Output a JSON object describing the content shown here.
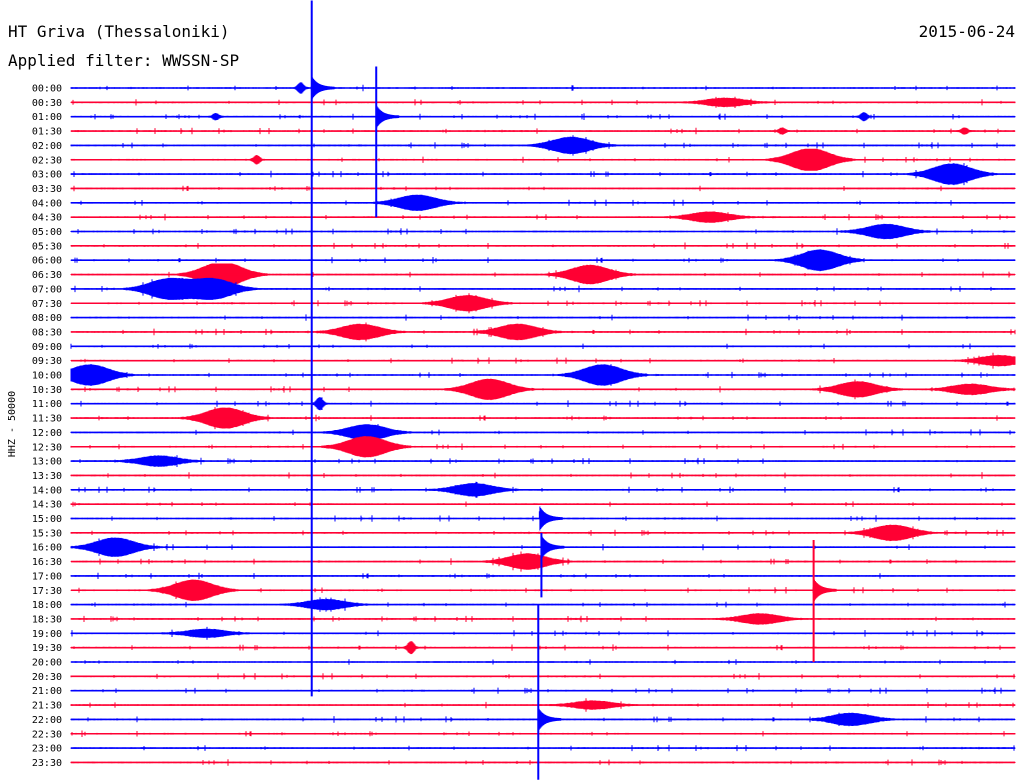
{
  "header": {
    "station": "HT Griva (Thessaloniki)",
    "date": "2015-06-24",
    "filter": "Applied filter: WWSSN-SP"
  },
  "chart_data": {
    "type": "line",
    "title": "HT Griva (Thessaloniki)",
    "subtitle": "Applied filter: WWSSN-SP",
    "ylabel": "HHZ - 50000",
    "xlabel": "",
    "grid": false,
    "colors": {
      "odd": "#0000ff",
      "even": "#ff0033"
    },
    "rows": [
      "00:00",
      "00:30",
      "01:00",
      "01:30",
      "02:00",
      "02:30",
      "03:00",
      "03:30",
      "04:00",
      "04:30",
      "05:00",
      "05:30",
      "06:00",
      "06:30",
      "07:00",
      "07:30",
      "08:00",
      "08:30",
      "09:00",
      "09:30",
      "10:00",
      "10:30",
      "11:00",
      "11:30",
      "12:00",
      "12:30",
      "13:00",
      "13:30",
      "14:00",
      "14:30",
      "15:00",
      "15:30",
      "16:00",
      "16:30",
      "17:00",
      "17:30",
      "18:00",
      "18:30",
      "19:00",
      "19:30",
      "20:00",
      "20:30",
      "21:00",
      "21:30",
      "22:00",
      "22:30",
      "23:00",
      "23:30"
    ],
    "events": [
      {
        "row": 0,
        "minute": 7.3,
        "amp": 1.0,
        "kind": "spike"
      },
      {
        "row": 1,
        "minute": 20.8,
        "amp": 0.8,
        "kind": "burst"
      },
      {
        "row": 2,
        "minute": 4.6,
        "amp": 0.6,
        "kind": "spike"
      },
      {
        "row": 2,
        "minute": 25.2,
        "amp": 0.8,
        "kind": "spike"
      },
      {
        "row": 3,
        "minute": 22.6,
        "amp": 0.6,
        "kind": "spike"
      },
      {
        "row": 3,
        "minute": 28.4,
        "amp": 0.6,
        "kind": "spike"
      },
      {
        "row": 4,
        "minute": 15.9,
        "amp": 1.6,
        "kind": "burst"
      },
      {
        "row": 5,
        "minute": 5.9,
        "amp": 0.8,
        "kind": "spike"
      },
      {
        "row": 5,
        "minute": 23.5,
        "amp": 2.2,
        "kind": "burst"
      },
      {
        "row": 6,
        "minute": 28.0,
        "amp": 2.0,
        "kind": "burst"
      },
      {
        "row": 8,
        "minute": 11.0,
        "amp": 1.5,
        "kind": "burst"
      },
      {
        "row": 9,
        "minute": 20.3,
        "amp": 1.0,
        "kind": "burst"
      },
      {
        "row": 10,
        "minute": 25.9,
        "amp": 1.4,
        "kind": "burst"
      },
      {
        "row": 12,
        "minute": 23.8,
        "amp": 2.0,
        "kind": "burst"
      },
      {
        "row": 13,
        "minute": 4.8,
        "amp": 2.5,
        "kind": "burst"
      },
      {
        "row": 13,
        "minute": 16.5,
        "amp": 1.8,
        "kind": "burst"
      },
      {
        "row": 14,
        "minute": 3.1,
        "amp": 2.0,
        "kind": "burst"
      },
      {
        "row": 14,
        "minute": 4.5,
        "amp": 2.0,
        "kind": "burst"
      },
      {
        "row": 15,
        "minute": 12.6,
        "amp": 1.5,
        "kind": "burst"
      },
      {
        "row": 17,
        "minute": 9.2,
        "amp": 1.5,
        "kind": "burst"
      },
      {
        "row": 17,
        "minute": 14.2,
        "amp": 1.5,
        "kind": "burst"
      },
      {
        "row": 19,
        "minute": 29.5,
        "amp": 1.0,
        "kind": "burst"
      },
      {
        "row": 20,
        "minute": 0.6,
        "amp": 2.0,
        "kind": "burst"
      },
      {
        "row": 20,
        "minute": 16.9,
        "amp": 2.0,
        "kind": "burst"
      },
      {
        "row": 21,
        "minute": 13.3,
        "amp": 2.0,
        "kind": "burst"
      },
      {
        "row": 21,
        "minute": 25.0,
        "amp": 1.5,
        "kind": "burst"
      },
      {
        "row": 21,
        "minute": 28.6,
        "amp": 1.0,
        "kind": "burst"
      },
      {
        "row": 22,
        "minute": 7.9,
        "amp": 1.2,
        "kind": "spike"
      },
      {
        "row": 23,
        "minute": 4.9,
        "amp": 2.0,
        "kind": "burst"
      },
      {
        "row": 24,
        "minute": 9.4,
        "amp": 1.5,
        "kind": "burst"
      },
      {
        "row": 25,
        "minute": 9.4,
        "amp": 2.0,
        "kind": "burst"
      },
      {
        "row": 26,
        "minute": 2.8,
        "amp": 1.0,
        "kind": "burst"
      },
      {
        "row": 28,
        "minute": 12.8,
        "amp": 1.2,
        "kind": "burst"
      },
      {
        "row": 31,
        "minute": 26.1,
        "amp": 1.5,
        "kind": "burst"
      },
      {
        "row": 32,
        "minute": 1.4,
        "amp": 1.8,
        "kind": "burst"
      },
      {
        "row": 33,
        "minute": 14.5,
        "amp": 1.5,
        "kind": "burst"
      },
      {
        "row": 35,
        "minute": 3.9,
        "amp": 2.0,
        "kind": "burst"
      },
      {
        "row": 36,
        "minute": 8.1,
        "amp": 1.0,
        "kind": "burst"
      },
      {
        "row": 37,
        "minute": 21.9,
        "amp": 1.0,
        "kind": "burst"
      },
      {
        "row": 38,
        "minute": 4.3,
        "amp": 0.8,
        "kind": "burst"
      },
      {
        "row": 39,
        "minute": 10.8,
        "amp": 1.2,
        "kind": "spike"
      },
      {
        "row": 43,
        "minute": 16.6,
        "amp": 0.8,
        "kind": "burst"
      },
      {
        "row": 44,
        "minute": 24.8,
        "amp": 1.2,
        "kind": "burst"
      }
    ],
    "long_spikes": [
      {
        "row": 0,
        "minute": 7.65,
        "up_rows": 6.1,
        "down_rows": 42.4
      },
      {
        "row": 2,
        "minute": 9.7,
        "up_rows": 3.5,
        "down_rows": 7.0
      },
      {
        "row": 30,
        "minute": 14.9,
        "up_rows": 0.5,
        "down_rows": 0.0
      },
      {
        "row": 32,
        "minute": 14.95,
        "up_rows": 1.0,
        "down_rows": 3.5
      },
      {
        "row": 35,
        "minute": 23.6,
        "up_rows": 3.5,
        "down_rows": 5.0
      },
      {
        "row": 44,
        "minute": 14.85,
        "up_rows": 8.0,
        "down_rows": 4.2
      }
    ]
  }
}
